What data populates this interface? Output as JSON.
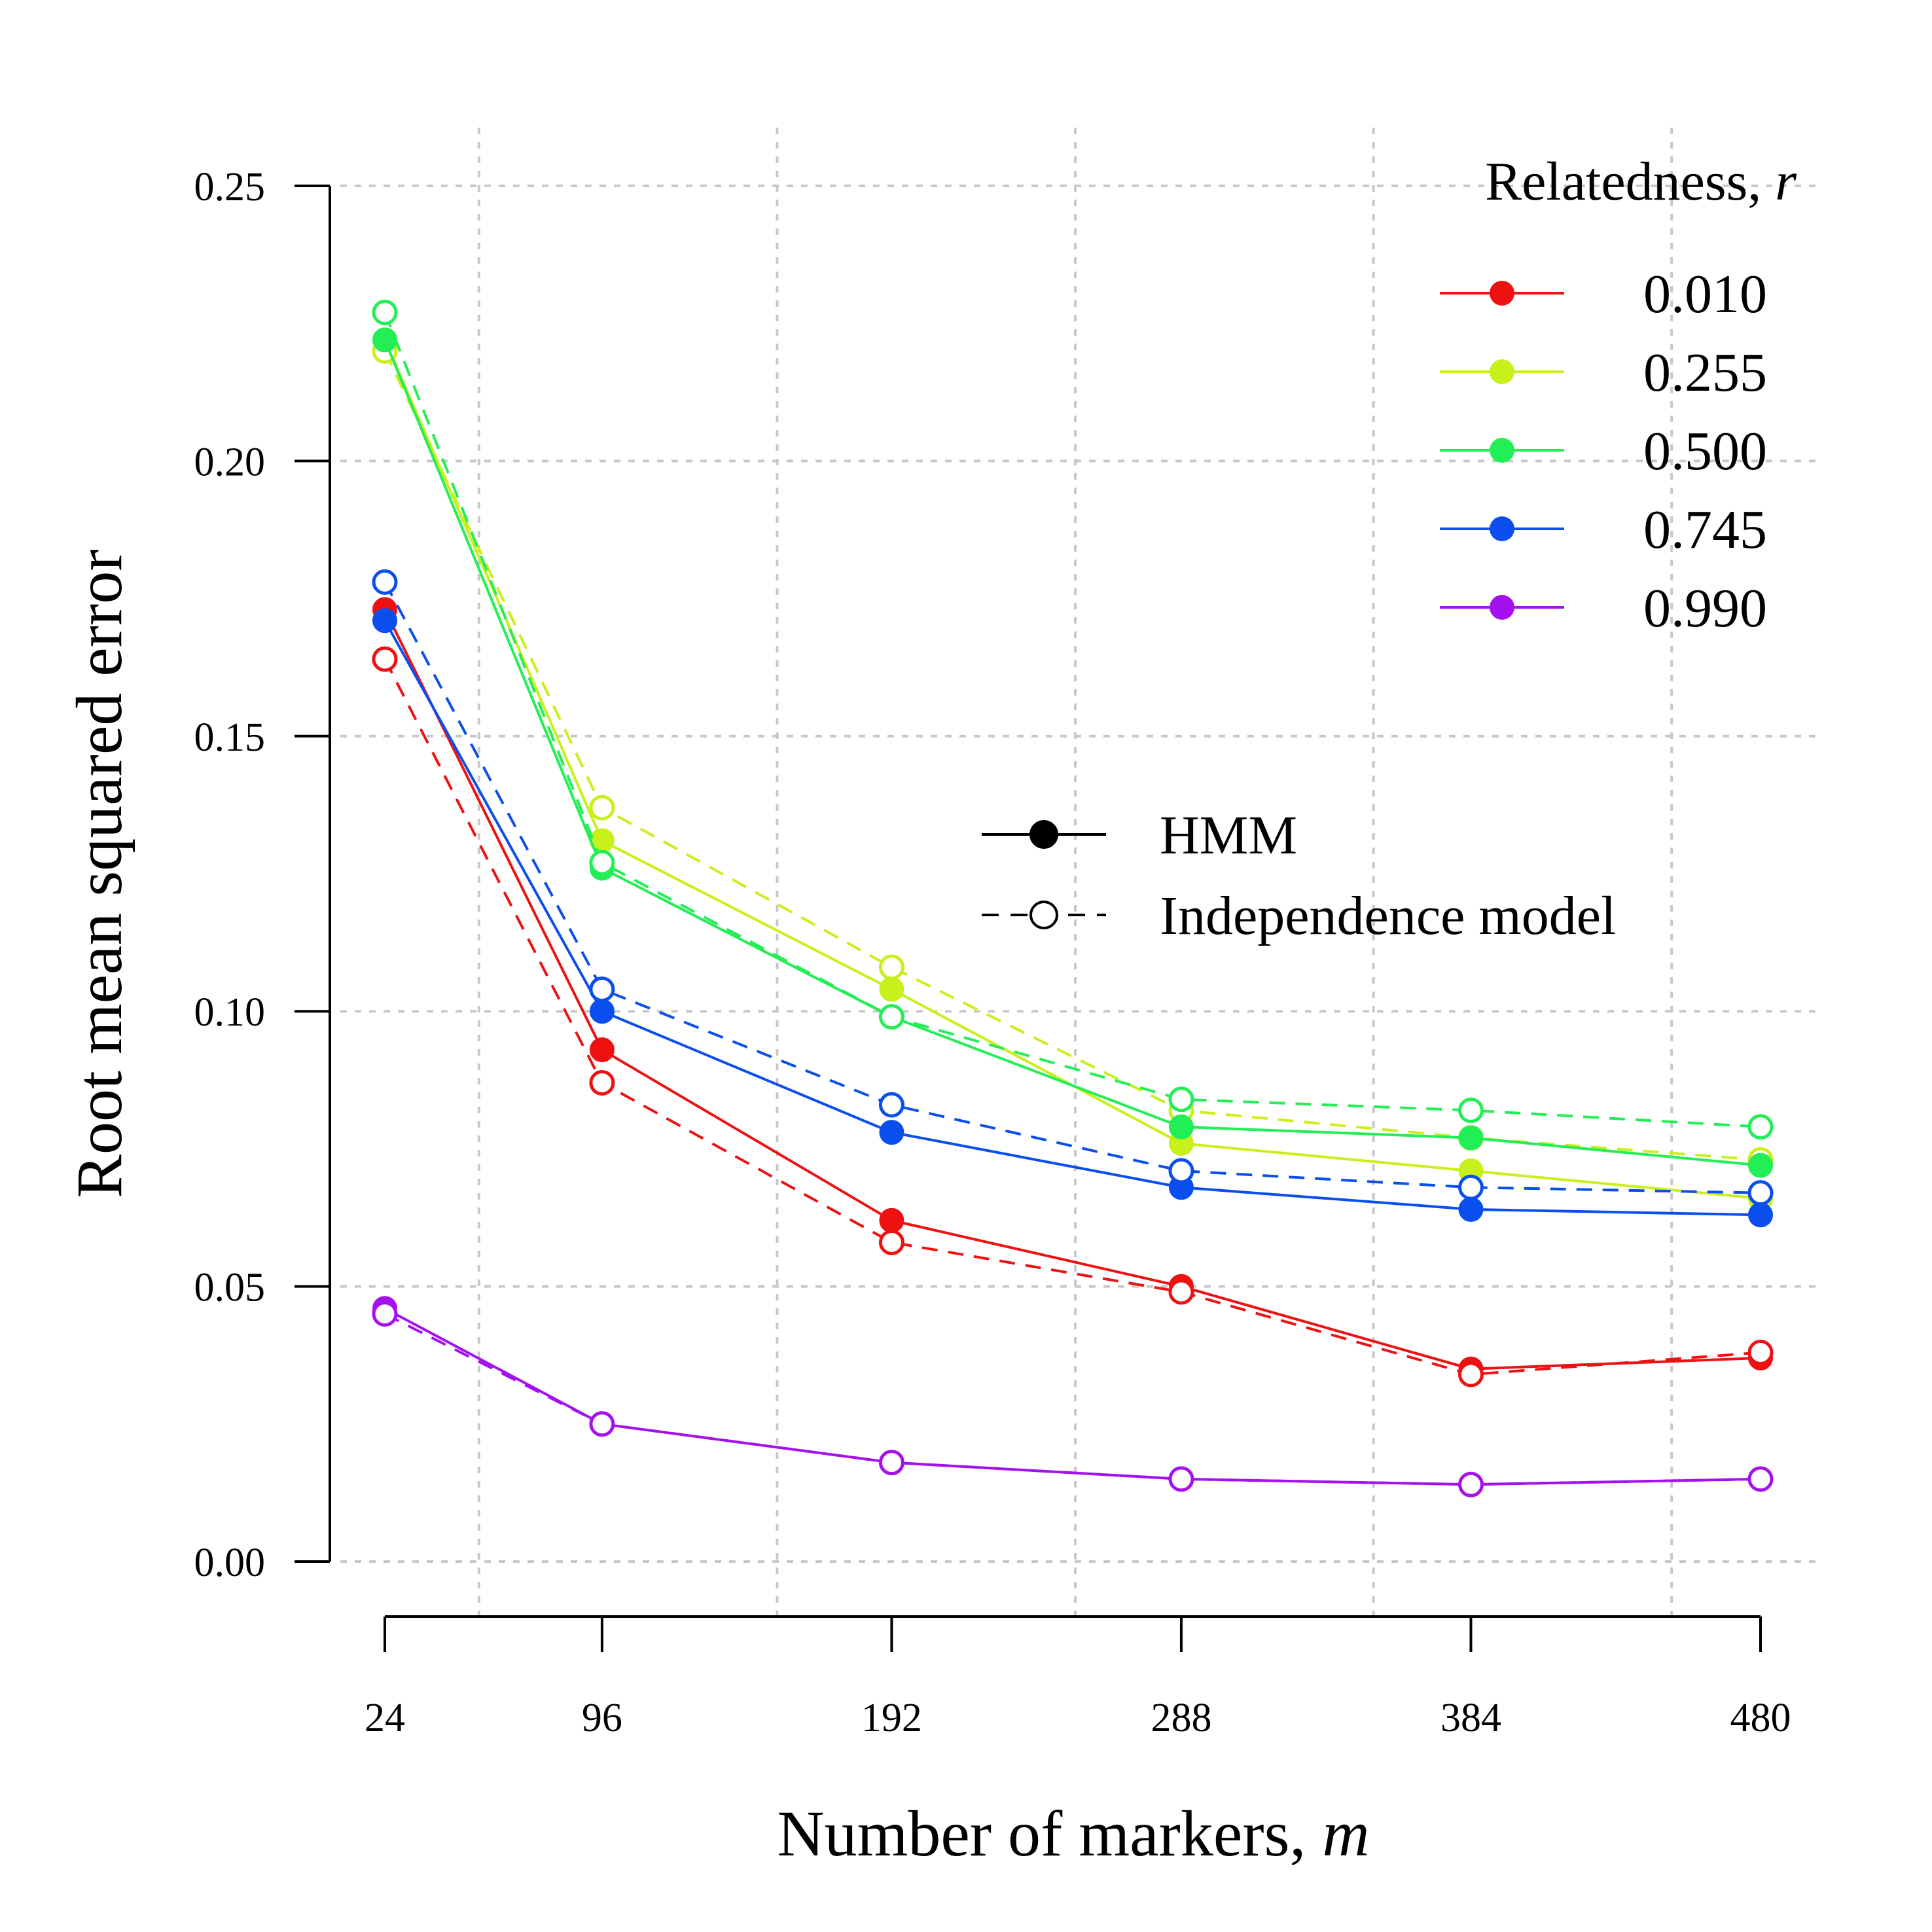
{
  "chart_data": {
    "type": "line",
    "xlabel_main": "Number of markers, ",
    "xlabel_var": "m",
    "ylabel": "Root mean squared error",
    "x": [
      24,
      96,
      192,
      288,
      384,
      480
    ],
    "x_tick_labels": [
      "24",
      "96",
      "192",
      "288",
      "384",
      "480"
    ],
    "y_tick_labels": [
      "0.00",
      "0.05",
      "0.10",
      "0.15",
      "0.20",
      "0.25"
    ],
    "y_ticks": [
      0,
      0.05,
      0.1,
      0.15,
      0.2,
      0.25
    ],
    "ylim": [
      0,
      0.25
    ],
    "grid": true,
    "legend_title_main": "Relatedness, ",
    "legend_title_var": "r",
    "legend_placement": "top-right",
    "model_legend": [
      {
        "label": "HMM",
        "style": "solid-filled"
      },
      {
        "label": "Independence model",
        "style": "dashed-open"
      }
    ],
    "series": [
      {
        "r": "0.010",
        "color": "#ee1111",
        "hmm": [
          0.173,
          0.093,
          0.062,
          0.05,
          0.035,
          0.037
        ],
        "independence": [
          0.164,
          0.087,
          0.058,
          0.049,
          0.034,
          0.038
        ]
      },
      {
        "r": "0.255",
        "color": "#c8f01a",
        "hmm": [
          0.222,
          0.131,
          0.104,
          0.076,
          0.071,
          0.066
        ],
        "independence": [
          0.22,
          0.137,
          0.108,
          0.082,
          0.077,
          0.073
        ]
      },
      {
        "r": "0.500",
        "color": "#22ee55",
        "hmm": [
          0.222,
          0.126,
          0.099,
          0.079,
          0.077,
          0.072
        ],
        "independence": [
          0.227,
          0.127,
          0.099,
          0.084,
          0.082,
          0.079
        ]
      },
      {
        "r": "0.745",
        "color": "#0a4eee",
        "hmm": [
          0.171,
          0.1,
          0.078,
          0.068,
          0.064,
          0.063
        ],
        "independence": [
          0.178,
          0.104,
          0.083,
          0.071,
          0.068,
          0.067
        ]
      },
      {
        "r": "0.990",
        "color": "#a411ee",
        "hmm": [
          0.046,
          0.025,
          0.018,
          0.015,
          0.014,
          0.015
        ],
        "independence": [
          0.045,
          0.025,
          0.018,
          0.015,
          0.014,
          0.015
        ]
      }
    ]
  }
}
